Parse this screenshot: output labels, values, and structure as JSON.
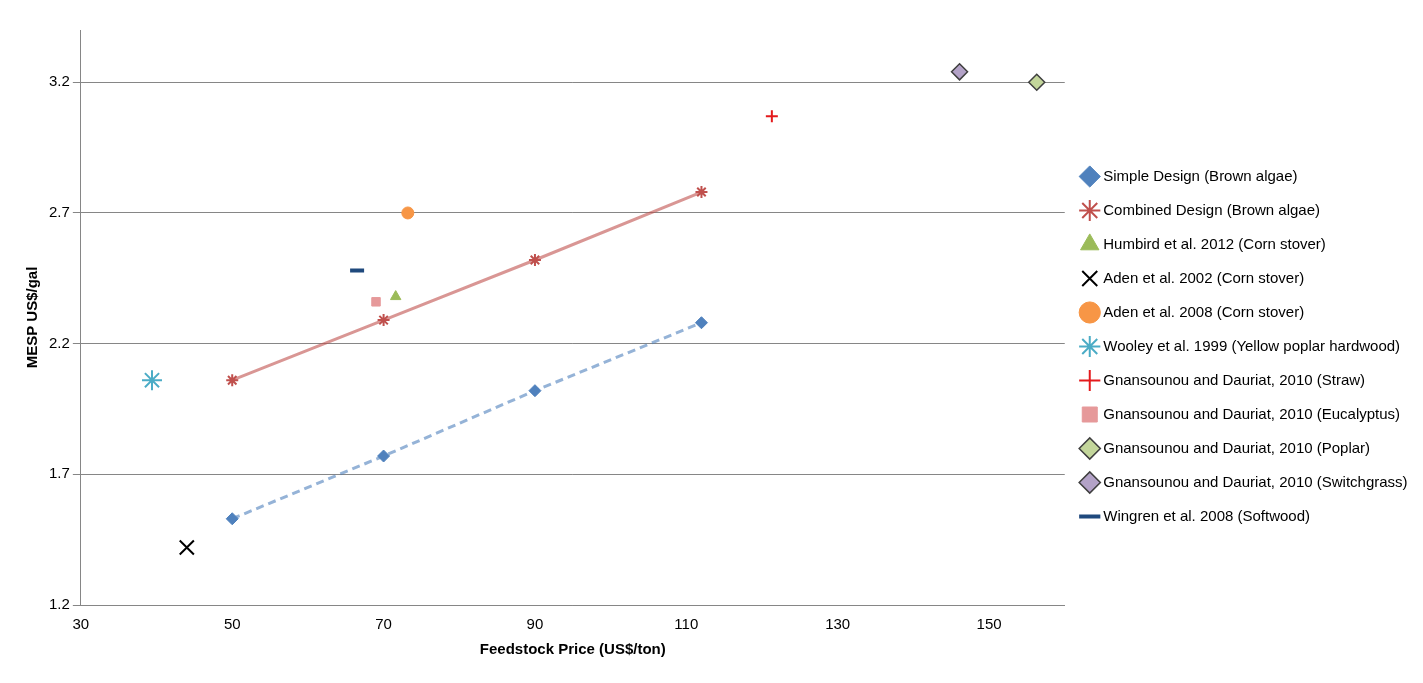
{
  "chart_data": {
    "type": "scatter",
    "x_label": "Feedstock Price (US$/ton)",
    "y_label": "MESP US$/gal",
    "xlim": [
      30,
      160
    ],
    "xticks": [
      30,
      50,
      70,
      90,
      110,
      130,
      150
    ],
    "ylim": [
      1.2,
      3.4
    ],
    "yticks": [
      1.2,
      1.7,
      2.2,
      2.7,
      3.2
    ],
    "grid": "y",
    "legend": "right",
    "series": [
      {
        "name": "Simple Design (Brown algae)",
        "type": "line",
        "marker": "diamond",
        "line_style": "dashed",
        "color": "#4f81bd",
        "x": [
          50,
          70,
          90,
          112
        ],
        "values": [
          1.53,
          1.77,
          2.02,
          2.28
        ]
      },
      {
        "name": "Combined Design (Brown algae)",
        "type": "line",
        "marker": "star",
        "line_style": "solid",
        "color": "#c0504d",
        "x": [
          50,
          70,
          90,
          112
        ],
        "values": [
          2.06,
          2.29,
          2.52,
          2.78
        ]
      },
      {
        "name": "Humbird et al. 2012 (Corn stover)",
        "type": "scatter",
        "marker": "triangle",
        "color": "#9bbb59",
        "x": [
          71.6
        ],
        "values": [
          2.38
        ]
      },
      {
        "name": "Aden et al. 2002 (Corn stover)",
        "type": "scatter",
        "marker": "x",
        "color": "#000000",
        "x": [
          44
        ],
        "values": [
          1.42
        ]
      },
      {
        "name": "Aden et al. 2008 (Corn stover)",
        "type": "scatter",
        "marker": "circle",
        "color": "#f79646",
        "x": [
          73.2
        ],
        "values": [
          2.7
        ]
      },
      {
        "name": "Wooley et al. 1999 (Yellow poplar hardwood)",
        "type": "scatter",
        "marker": "star",
        "color": "#4bacc6",
        "x": [
          39.4
        ],
        "values": [
          2.06
        ]
      },
      {
        "name": "Gnansounou and Dauriat, 2010 (Straw)",
        "type": "scatter",
        "marker": "plus",
        "color": "#e41a1c",
        "x": [
          121.3
        ],
        "values": [
          3.07
        ]
      },
      {
        "name": "Gnansounou and Dauriat, 2010 (Eucalyptus)",
        "type": "scatter",
        "marker": "square",
        "color": "#e6999a",
        "x": [
          69
        ],
        "values": [
          2.36
        ]
      },
      {
        "name": "Gnansounou and Dauriat, 2010 (Poplar)",
        "type": "scatter",
        "marker": "diamond",
        "color": "#c3d69b",
        "x": [
          156.3
        ],
        "values": [
          3.2
        ]
      },
      {
        "name": "Gnansounou and Dauriat, 2010 (Switchgrass)",
        "type": "scatter",
        "marker": "diamond",
        "color": "#b3a2c7",
        "x": [
          146.1
        ],
        "values": [
          3.24
        ]
      },
      {
        "name": "Wingren et al. 2008 (Softwood)",
        "type": "scatter",
        "marker": "dash",
        "color": "#1f497d",
        "x": [
          66.5
        ],
        "values": [
          2.48
        ]
      }
    ]
  }
}
